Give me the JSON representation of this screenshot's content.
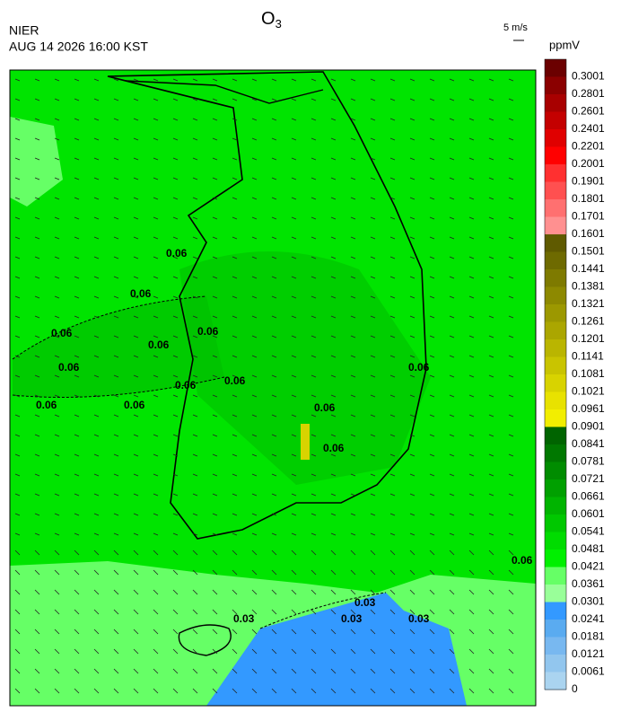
{
  "header": {
    "title": "O",
    "title_sub": "3",
    "agency": "NIER",
    "datetime": "AUG 14 2026 16:00 KST",
    "wind_scale": "5 m/s"
  },
  "legend": {
    "unit": "ppmV",
    "levels": [
      {
        "label": "0.3001",
        "color": "#6b0000"
      },
      {
        "label": "0.2801",
        "color": "#8b0000"
      },
      {
        "label": "0.2601",
        "color": "#a80000"
      },
      {
        "label": "0.2401",
        "color": "#c40000"
      },
      {
        "label": "0.2201",
        "color": "#e00000"
      },
      {
        "label": "0.2001",
        "color": "#ff0000"
      },
      {
        "label": "0.1901",
        "color": "#ff3030"
      },
      {
        "label": "0.1801",
        "color": "#ff5050"
      },
      {
        "label": "0.1701",
        "color": "#ff7070"
      },
      {
        "label": "0.1601",
        "color": "#ff9090"
      },
      {
        "label": "0.1501",
        "color": "#5f5a00"
      },
      {
        "label": "0.1441",
        "color": "#6e6a00"
      },
      {
        "label": "0.1381",
        "color": "#7e7a00"
      },
      {
        "label": "0.1321",
        "color": "#8d8900"
      },
      {
        "label": "0.1261",
        "color": "#9c9800"
      },
      {
        "label": "0.1201",
        "color": "#aba600"
      },
      {
        "label": "0.1141",
        "color": "#bab500"
      },
      {
        "label": "0.1081",
        "color": "#c9c400"
      },
      {
        "label": "0.1021",
        "color": "#d8d300"
      },
      {
        "label": "0.0961",
        "color": "#e8e200"
      },
      {
        "label": "0.0901",
        "color": "#f2ee00"
      },
      {
        "label": "0.0841",
        "color": "#006400"
      },
      {
        "label": "0.0781",
        "color": "#007800"
      },
      {
        "label": "0.0721",
        "color": "#008c00"
      },
      {
        "label": "0.0661",
        "color": "#00a000"
      },
      {
        "label": "0.0601",
        "color": "#00b400"
      },
      {
        "label": "0.0541",
        "color": "#00c800"
      },
      {
        "label": "0.0481",
        "color": "#00dc00"
      },
      {
        "label": "0.0421",
        "color": "#00f000"
      },
      {
        "label": "0.0361",
        "color": "#66ff66"
      },
      {
        "label": "0.0301",
        "color": "#99ff99"
      },
      {
        "label": "0.0241",
        "color": "#3399ff"
      },
      {
        "label": "0.0181",
        "color": "#5aabf0"
      },
      {
        "label": "0.0121",
        "color": "#78b8f0"
      },
      {
        "label": "0.0061",
        "color": "#92c6ee"
      },
      {
        "label": "0",
        "color": "#aad4f0"
      }
    ]
  },
  "contour_labels": [
    "0.06",
    "0.06",
    "0.06",
    "0.06",
    "0.06",
    "0.06",
    "0.06",
    "0.06",
    "0.06",
    "0.06",
    "0.06",
    "0.06",
    "0.06",
    "0.03",
    "0.03",
    "0.03",
    "0.03",
    "0.06"
  ]
}
